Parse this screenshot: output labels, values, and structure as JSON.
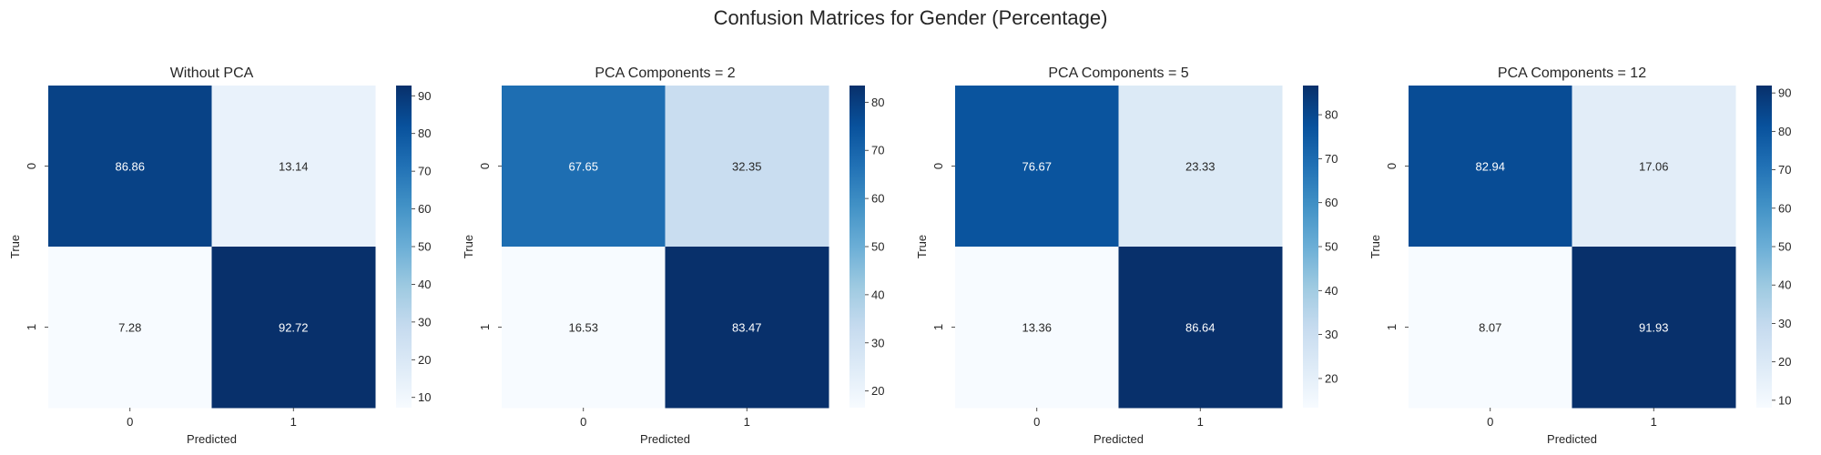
{
  "figure": {
    "title": "Confusion Matrices for Gender (Percentage)"
  },
  "colormap": {
    "name": "Blues",
    "stops": [
      "#f7fbff",
      "#deebf7",
      "#c6dbef",
      "#9ecae1",
      "#6baed6",
      "#4292c6",
      "#2171b5",
      "#08519c",
      "#08306b"
    ],
    "light_text": "#ffffff",
    "dark_text": "#262626"
  },
  "chart_data": [
    {
      "type": "heatmap",
      "title": "Without PCA",
      "xlabel": "Predicted",
      "ylabel": "True",
      "x_categories": [
        "0",
        "1"
      ],
      "y_categories": [
        "0",
        "1"
      ],
      "values": [
        [
          86.86,
          13.14
        ],
        [
          7.28,
          92.72
        ]
      ],
      "annotations": [
        [
          "86.86",
          "13.14"
        ],
        [
          "7.28",
          "92.72"
        ]
      ],
      "colorbar": {
        "ticks": [
          10,
          20,
          30,
          40,
          50,
          60,
          70,
          80,
          90
        ],
        "tick_labels": [
          "10",
          "20",
          "30",
          "40",
          "50",
          "60",
          "70",
          "80",
          "90"
        ]
      },
      "vmin": 7.28,
      "vmax": 92.72
    },
    {
      "type": "heatmap",
      "title": "PCA Components = 2",
      "xlabel": "Predicted",
      "ylabel": "True",
      "x_categories": [
        "0",
        "1"
      ],
      "y_categories": [
        "0",
        "1"
      ],
      "values": [
        [
          67.65,
          32.35
        ],
        [
          16.53,
          83.47
        ]
      ],
      "annotations": [
        [
          "67.65",
          "32.35"
        ],
        [
          "16.53",
          "83.47"
        ]
      ],
      "colorbar": {
        "ticks": [
          20,
          30,
          40,
          50,
          60,
          70,
          80
        ],
        "tick_labels": [
          "20",
          "30",
          "40",
          "50",
          "60",
          "70",
          "80"
        ]
      },
      "vmin": 16.53,
      "vmax": 83.47
    },
    {
      "type": "heatmap",
      "title": "PCA Components = 5",
      "xlabel": "Predicted",
      "ylabel": "True",
      "x_categories": [
        "0",
        "1"
      ],
      "y_categories": [
        "0",
        "1"
      ],
      "values": [
        [
          76.67,
          23.33
        ],
        [
          13.36,
          86.64
        ]
      ],
      "annotations": [
        [
          "76.67",
          "23.33"
        ],
        [
          "13.36",
          "86.64"
        ]
      ],
      "colorbar": {
        "ticks": [
          20,
          30,
          40,
          50,
          60,
          70,
          80
        ],
        "tick_labels": [
          "20",
          "30",
          "40",
          "50",
          "60",
          "70",
          "80"
        ]
      },
      "vmin": 13.36,
      "vmax": 86.64
    },
    {
      "type": "heatmap",
      "title": "PCA Components = 12",
      "xlabel": "Predicted",
      "ylabel": "True",
      "x_categories": [
        "0",
        "1"
      ],
      "y_categories": [
        "0",
        "1"
      ],
      "values": [
        [
          82.94,
          17.06
        ],
        [
          8.07,
          91.93
        ]
      ],
      "annotations": [
        [
          "82.94",
          "17.06"
        ],
        [
          "8.07",
          "91.93"
        ]
      ],
      "colorbar": {
        "ticks": [
          10,
          20,
          30,
          40,
          50,
          60,
          70,
          80,
          90
        ],
        "tick_labels": [
          "10",
          "20",
          "30",
          "40",
          "50",
          "60",
          "70",
          "80",
          "90"
        ]
      },
      "vmin": 8.07,
      "vmax": 91.93
    }
  ]
}
